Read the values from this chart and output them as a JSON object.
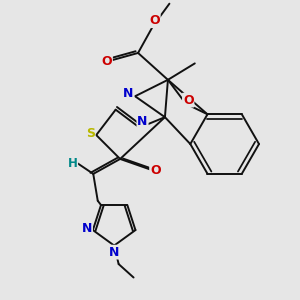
{
  "bg_color": "#e6e6e6",
  "bond_color": "#111111",
  "bond_lw": 1.4,
  "S_color": "#b8b800",
  "N_color": "#0000cc",
  "O_color": "#cc0000",
  "H_color": "#008888",
  "figsize": [
    3.0,
    3.0
  ],
  "dpi": 100,
  "xlim": [
    -1,
    9
  ],
  "ylim": [
    -1,
    9
  ]
}
